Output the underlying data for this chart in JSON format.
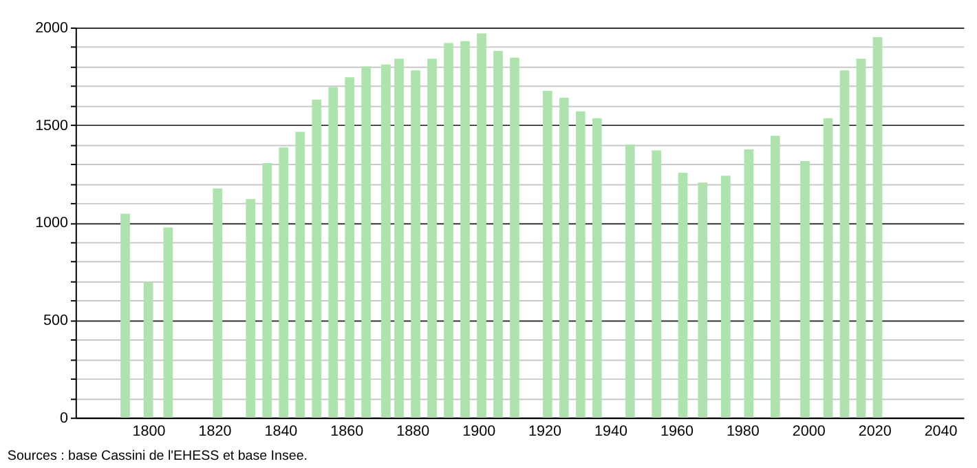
{
  "chart_data": {
    "type": "bar",
    "x": [
      1793,
      1800,
      1806,
      1821,
      1831,
      1836,
      1841,
      1846,
      1851,
      1856,
      1861,
      1866,
      1872,
      1876,
      1881,
      1886,
      1891,
      1896,
      1901,
      1906,
      1911,
      1921,
      1926,
      1931,
      1936,
      1946,
      1954,
      1962,
      1968,
      1975,
      1982,
      1990,
      1999,
      2006,
      2011,
      2016,
      2021
    ],
    "values": [
      1045,
      695,
      975,
      1175,
      1120,
      1305,
      1385,
      1465,
      1630,
      1695,
      1745,
      1800,
      1810,
      1840,
      1780,
      1840,
      1920,
      1930,
      1970,
      1880,
      1845,
      1675,
      1640,
      1570,
      1535,
      1400,
      1370,
      1255,
      1205,
      1240,
      1375,
      1445,
      1315,
      1535,
      1780,
      1840,
      1950
    ],
    "color": "#b0e2b0",
    "xlim": [
      1780,
      2045
    ],
    "xticks": [
      1800,
      1820,
      1840,
      1860,
      1880,
      1900,
      1920,
      1940,
      1960,
      1980,
      2000,
      2020,
      2040
    ],
    "ylim": [
      0,
      2000
    ],
    "yticks": [
      0,
      {
        "value": 100,
        "label": null
      },
      {
        "value": 200,
        "label": null
      },
      {
        "value": 300,
        "label": null
      },
      {
        "value": 400,
        "label": null
      },
      500,
      {
        "value": 600,
        "label": null
      },
      {
        "value": 700,
        "label": null
      },
      {
        "value": 800,
        "label": null
      },
      {
        "value": 900,
        "label": null
      },
      1000,
      {
        "value": 1100,
        "label": null
      },
      {
        "value": 1200,
        "label": null
      },
      {
        "value": 1300,
        "label": null
      },
      {
        "value": 1400,
        "label": null
      },
      1500,
      {
        "value": 1600,
        "label": null
      },
      {
        "value": 1700,
        "label": null
      },
      {
        "value": 1800,
        "label": null
      },
      {
        "value": 1900,
        "label": null
      },
      2000
    ],
    "grid": "y",
    "annotations": [
      "Sources : base Cassini de l'EHESS et base Insee."
    ]
  }
}
